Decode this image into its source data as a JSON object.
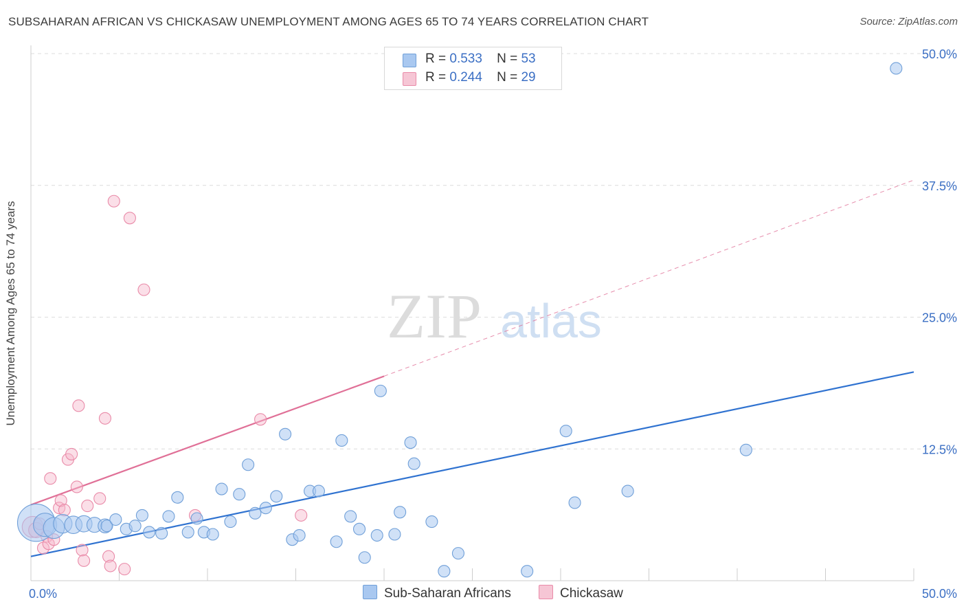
{
  "header": {
    "title": "SUBSAHARAN AFRICAN VS CHICKASAW UNEMPLOYMENT AMONG AGES 65 TO 74 YEARS CORRELATION CHART",
    "source": "Source: ZipAtlas.com"
  },
  "watermark": {
    "zip": "ZIP",
    "atlas": "atlas"
  },
  "legend": {
    "r_label": "R =",
    "n_label": "N =",
    "rows": [
      {
        "series": "Sub-Saharan Africans",
        "r": "0.533",
        "n": "53",
        "color": "#a9c8f0"
      },
      {
        "series": "Chickasaw",
        "r": "0.244",
        "n": "29",
        "color": "#f6b8cb"
      }
    ]
  },
  "colors": {
    "blue_fill": "#a9c8f0",
    "blue_stroke": "#6f9fd8",
    "blue_line": "#2f72d0",
    "pink_fill": "#f6b8cb",
    "pink_stroke": "#e98aa8",
    "pink_line": "#e07097",
    "axis_text": "#3b6fc4",
    "grid": "#dcdcdc"
  },
  "chart_data": {
    "type": "scatter",
    "title": "SUBSAHARAN AFRICAN VS CHICKASAW UNEMPLOYMENT AMONG AGES 65 TO 74 YEARS CORRELATION CHART",
    "xlabel": "",
    "ylabel": "Unemployment Among Ages 65 to 74 years",
    "xlim": [
      0,
      50
    ],
    "ylim": [
      0,
      50
    ],
    "x_tick_labels": [
      "0.0%",
      "50.0%"
    ],
    "y_ticks": [
      12.5,
      25.0,
      37.5,
      50.0
    ],
    "y_tick_labels": [
      "12.5%",
      "25.0%",
      "37.5%",
      "50.0%"
    ],
    "grid": true,
    "series": [
      {
        "name": "Sub-Saharan Africans",
        "color": "#a9c8f0",
        "r": 0.533,
        "n": 53,
        "trend": {
          "x": [
            0,
            50
          ],
          "y": [
            2.3,
            19.8
          ],
          "dashed_extension": false
        },
        "points": [
          {
            "x": 0.3,
            "y": 5.5,
            "s": 3.2
          },
          {
            "x": 0.8,
            "y": 5.3,
            "s": 2
          },
          {
            "x": 1.3,
            "y": 5.0,
            "s": 1.8
          },
          {
            "x": 1.8,
            "y": 5.4,
            "s": 1.6
          },
          {
            "x": 2.4,
            "y": 5.3,
            "s": 1.5
          },
          {
            "x": 3.0,
            "y": 5.4,
            "s": 1.4
          },
          {
            "x": 3.6,
            "y": 5.3,
            "s": 1.3
          },
          {
            "x": 4.2,
            "y": 5.2,
            "s": 1.2
          },
          {
            "x": 4.3,
            "y": 5.2,
            "s": 1
          },
          {
            "x": 4.8,
            "y": 5.8,
            "s": 1
          },
          {
            "x": 5.4,
            "y": 4.9,
            "s": 1
          },
          {
            "x": 5.9,
            "y": 5.2,
            "s": 1
          },
          {
            "x": 6.3,
            "y": 6.2,
            "s": 1
          },
          {
            "x": 6.7,
            "y": 4.6,
            "s": 1
          },
          {
            "x": 7.4,
            "y": 4.5,
            "s": 1
          },
          {
            "x": 7.8,
            "y": 6.1,
            "s": 1
          },
          {
            "x": 8.3,
            "y": 7.9,
            "s": 1
          },
          {
            "x": 8.9,
            "y": 4.6,
            "s": 1
          },
          {
            "x": 9.4,
            "y": 5.9,
            "s": 1
          },
          {
            "x": 9.8,
            "y": 4.6,
            "s": 1
          },
          {
            "x": 10.3,
            "y": 4.4,
            "s": 1
          },
          {
            "x": 10.8,
            "y": 8.7,
            "s": 1
          },
          {
            "x": 11.3,
            "y": 5.6,
            "s": 1
          },
          {
            "x": 11.8,
            "y": 8.2,
            "s": 1
          },
          {
            "x": 12.3,
            "y": 11.0,
            "s": 1
          },
          {
            "x": 12.7,
            "y": 6.4,
            "s": 1
          },
          {
            "x": 13.3,
            "y": 6.9,
            "s": 1
          },
          {
            "x": 13.9,
            "y": 8.0,
            "s": 1
          },
          {
            "x": 14.4,
            "y": 13.9,
            "s": 1
          },
          {
            "x": 14.8,
            "y": 3.9,
            "s": 1
          },
          {
            "x": 15.2,
            "y": 4.3,
            "s": 1
          },
          {
            "x": 15.8,
            "y": 8.5,
            "s": 1
          },
          {
            "x": 16.3,
            "y": 8.5,
            "s": 1
          },
          {
            "x": 17.3,
            "y": 3.7,
            "s": 1
          },
          {
            "x": 17.6,
            "y": 13.3,
            "s": 1
          },
          {
            "x": 18.1,
            "y": 6.1,
            "s": 1
          },
          {
            "x": 18.6,
            "y": 4.9,
            "s": 1
          },
          {
            "x": 18.9,
            "y": 2.2,
            "s": 1
          },
          {
            "x": 19.6,
            "y": 4.3,
            "s": 1
          },
          {
            "x": 19.8,
            "y": 18.0,
            "s": 1
          },
          {
            "x": 20.6,
            "y": 4.4,
            "s": 1
          },
          {
            "x": 20.9,
            "y": 6.5,
            "s": 1
          },
          {
            "x": 21.5,
            "y": 13.1,
            "s": 1
          },
          {
            "x": 21.7,
            "y": 11.1,
            "s": 1
          },
          {
            "x": 22.7,
            "y": 5.6,
            "s": 1
          },
          {
            "x": 23.4,
            "y": 0.9,
            "s": 1
          },
          {
            "x": 24.2,
            "y": 2.6,
            "s": 1
          },
          {
            "x": 28.1,
            "y": 0.9,
            "s": 1
          },
          {
            "x": 30.3,
            "y": 14.2,
            "s": 1
          },
          {
            "x": 30.8,
            "y": 7.4,
            "s": 1
          },
          {
            "x": 33.8,
            "y": 8.5,
            "s": 1
          },
          {
            "x": 40.5,
            "y": 12.4,
            "s": 1
          },
          {
            "x": 49.0,
            "y": 48.6,
            "s": 1
          }
        ]
      },
      {
        "name": "Chickasaw",
        "color": "#f6b8cb",
        "r": 0.244,
        "n": 29,
        "trend": {
          "x": [
            0,
            20
          ],
          "y": [
            7.2,
            19.4
          ],
          "dashed_extension": true,
          "dashed_to": [
            50,
            38.0
          ]
        },
        "points": [
          {
            "x": 0.1,
            "y": 5.1,
            "s": 1.8
          },
          {
            "x": 0.3,
            "y": 4.8,
            "s": 1.3
          },
          {
            "x": 0.5,
            "y": 5.4,
            "s": 1
          },
          {
            "x": 0.7,
            "y": 3.1,
            "s": 1
          },
          {
            "x": 0.9,
            "y": 4.2,
            "s": 1
          },
          {
            "x": 1.0,
            "y": 3.5,
            "s": 1
          },
          {
            "x": 1.1,
            "y": 9.7,
            "s": 1
          },
          {
            "x": 1.3,
            "y": 3.9,
            "s": 1
          },
          {
            "x": 1.6,
            "y": 6.9,
            "s": 1
          },
          {
            "x": 1.7,
            "y": 7.6,
            "s": 1
          },
          {
            "x": 1.9,
            "y": 6.7,
            "s": 1
          },
          {
            "x": 2.1,
            "y": 11.5,
            "s": 1
          },
          {
            "x": 2.3,
            "y": 12.0,
            "s": 1
          },
          {
            "x": 2.6,
            "y": 8.9,
            "s": 1
          },
          {
            "x": 2.7,
            "y": 16.6,
            "s": 1
          },
          {
            "x": 2.9,
            "y": 2.9,
            "s": 1
          },
          {
            "x": 3.0,
            "y": 1.9,
            "s": 1
          },
          {
            "x": 3.2,
            "y": 7.1,
            "s": 1
          },
          {
            "x": 3.9,
            "y": 7.8,
            "s": 1
          },
          {
            "x": 4.2,
            "y": 15.4,
            "s": 1
          },
          {
            "x": 4.4,
            "y": 2.3,
            "s": 1
          },
          {
            "x": 4.5,
            "y": 1.4,
            "s": 1
          },
          {
            "x": 4.7,
            "y": 36.0,
            "s": 1
          },
          {
            "x": 5.3,
            "y": 1.1,
            "s": 1
          },
          {
            "x": 5.6,
            "y": 34.4,
            "s": 1
          },
          {
            "x": 6.4,
            "y": 27.6,
            "s": 1
          },
          {
            "x": 9.3,
            "y": 6.2,
            "s": 1
          },
          {
            "x": 13.0,
            "y": 15.3,
            "s": 1
          },
          {
            "x": 15.3,
            "y": 6.2,
            "s": 1
          }
        ]
      }
    ]
  }
}
